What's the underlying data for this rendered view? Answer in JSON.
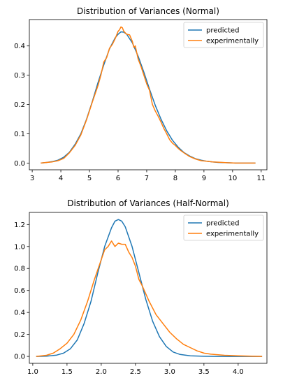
{
  "chart_data": [
    {
      "type": "line",
      "title": "Distribution of Variances (Normal)",
      "xlabel": "",
      "ylabel": "",
      "xlim": [
        2.9,
        11.2
      ],
      "ylim": [
        -0.023,
        0.49
      ],
      "xticks": [
        3,
        4,
        5,
        6,
        7,
        8,
        9,
        10,
        11
      ],
      "yticks": [
        0.0,
        0.1,
        0.2,
        0.3,
        0.4
      ],
      "ytick_labels": [
        "0.0",
        "0.1",
        "0.2",
        "0.3",
        "0.4"
      ],
      "grid": false,
      "legend_position": "top-right",
      "series": [
        {
          "name": "predicted",
          "color": "#1f77b4",
          "x": [
            3.3,
            3.5,
            3.7,
            3.9,
            4.1,
            4.3,
            4.5,
            4.7,
            4.9,
            5.1,
            5.3,
            5.5,
            5.7,
            5.9,
            6.0,
            6.1,
            6.2,
            6.3,
            6.5,
            6.7,
            6.9,
            7.1,
            7.3,
            7.5,
            7.7,
            7.9,
            8.1,
            8.3,
            8.5,
            8.7,
            8.9,
            9.1,
            9.3,
            9.5,
            9.8,
            10.1,
            10.5,
            10.8
          ],
          "y": [
            0.0,
            0.002,
            0.005,
            0.01,
            0.02,
            0.037,
            0.064,
            0.1,
            0.15,
            0.21,
            0.275,
            0.335,
            0.39,
            0.428,
            0.44,
            0.448,
            0.447,
            0.44,
            0.41,
            0.365,
            0.31,
            0.252,
            0.197,
            0.15,
            0.11,
            0.078,
            0.054,
            0.036,
            0.024,
            0.015,
            0.01,
            0.006,
            0.004,
            0.002,
            0.001,
            0.0,
            0.0,
            0.0
          ]
        },
        {
          "name": "experimentally",
          "color": "#ff7f0e",
          "x": [
            3.3,
            3.5,
            3.7,
            3.9,
            4.1,
            4.3,
            4.5,
            4.7,
            4.9,
            5.1,
            5.3,
            5.4,
            5.5,
            5.6,
            5.7,
            5.8,
            5.9,
            6.0,
            6.05,
            6.1,
            6.15,
            6.2,
            6.3,
            6.4,
            6.5,
            6.55,
            6.6,
            6.7,
            6.8,
            6.9,
            7.0,
            7.1,
            7.2,
            7.3,
            7.4,
            7.5,
            7.6,
            7.7,
            7.8,
            7.9,
            8.0,
            8.1,
            8.2,
            8.3,
            8.5,
            8.7,
            8.9,
            9.1,
            9.3,
            9.5,
            9.8,
            10.1,
            10.5,
            10.8
          ],
          "y": [
            0.0,
            0.002,
            0.004,
            0.008,
            0.016,
            0.035,
            0.06,
            0.096,
            0.148,
            0.208,
            0.265,
            0.3,
            0.345,
            0.36,
            0.392,
            0.405,
            0.425,
            0.45,
            0.455,
            0.465,
            0.462,
            0.45,
            0.44,
            0.438,
            0.415,
            0.395,
            0.4,
            0.355,
            0.33,
            0.3,
            0.27,
            0.248,
            0.2,
            0.178,
            0.16,
            0.14,
            0.118,
            0.1,
            0.08,
            0.068,
            0.06,
            0.05,
            0.042,
            0.035,
            0.022,
            0.014,
            0.008,
            0.006,
            0.004,
            0.003,
            0.001,
            0.0,
            0.0,
            0.0
          ]
        }
      ]
    },
    {
      "type": "line",
      "title": "Distribution of Variances (Half-Normal)",
      "xlabel": "",
      "ylabel": "",
      "xlim": [
        0.95,
        4.42
      ],
      "ylim": [
        -0.063,
        1.31
      ],
      "xticks": [
        1.0,
        1.5,
        2.0,
        2.5,
        3.0,
        3.5,
        4.0
      ],
      "xtick_labels": [
        "1.0",
        "1.5",
        "2.0",
        "2.5",
        "3.0",
        "3.5",
        "4.0"
      ],
      "yticks": [
        0.0,
        0.2,
        0.4,
        0.6,
        0.8,
        1.0,
        1.2
      ],
      "ytick_labels": [
        "0.0",
        "0.2",
        "0.4",
        "0.6",
        "0.8",
        "1.0",
        "1.2"
      ],
      "grid": false,
      "legend_position": "top-right",
      "series": [
        {
          "name": "predicted",
          "color": "#1f77b4",
          "x": [
            1.05,
            1.2,
            1.35,
            1.45,
            1.55,
            1.65,
            1.75,
            1.85,
            1.95,
            2.05,
            2.15,
            2.2,
            2.25,
            2.3,
            2.35,
            2.45,
            2.55,
            2.65,
            2.75,
            2.85,
            2.95,
            3.05,
            3.15,
            3.3,
            3.5,
            3.7,
            4.0,
            4.35
          ],
          "y": [
            0.0,
            0.002,
            0.012,
            0.03,
            0.07,
            0.15,
            0.3,
            0.5,
            0.76,
            1.0,
            1.17,
            1.23,
            1.245,
            1.23,
            1.18,
            1.0,
            0.76,
            0.52,
            0.32,
            0.18,
            0.09,
            0.04,
            0.018,
            0.005,
            0.001,
            0.0,
            0.0,
            0.0
          ]
        },
        {
          "name": "experimentally",
          "color": "#ff7f0e",
          "x": [
            1.05,
            1.2,
            1.3,
            1.4,
            1.5,
            1.6,
            1.7,
            1.8,
            1.9,
            2.0,
            2.05,
            2.1,
            2.15,
            2.2,
            2.25,
            2.3,
            2.35,
            2.4,
            2.45,
            2.5,
            2.55,
            2.6,
            2.7,
            2.8,
            2.9,
            3.0,
            3.1,
            3.2,
            3.3,
            3.4,
            3.5,
            3.6,
            3.8,
            4.0,
            4.35
          ],
          "y": [
            0.0,
            0.01,
            0.03,
            0.07,
            0.12,
            0.2,
            0.33,
            0.5,
            0.7,
            0.88,
            0.97,
            1.0,
            1.05,
            1.0,
            1.03,
            1.02,
            1.02,
            0.95,
            0.9,
            0.82,
            0.7,
            0.64,
            0.5,
            0.38,
            0.3,
            0.22,
            0.16,
            0.11,
            0.08,
            0.05,
            0.03,
            0.02,
            0.01,
            0.005,
            0.0
          ]
        }
      ]
    }
  ]
}
